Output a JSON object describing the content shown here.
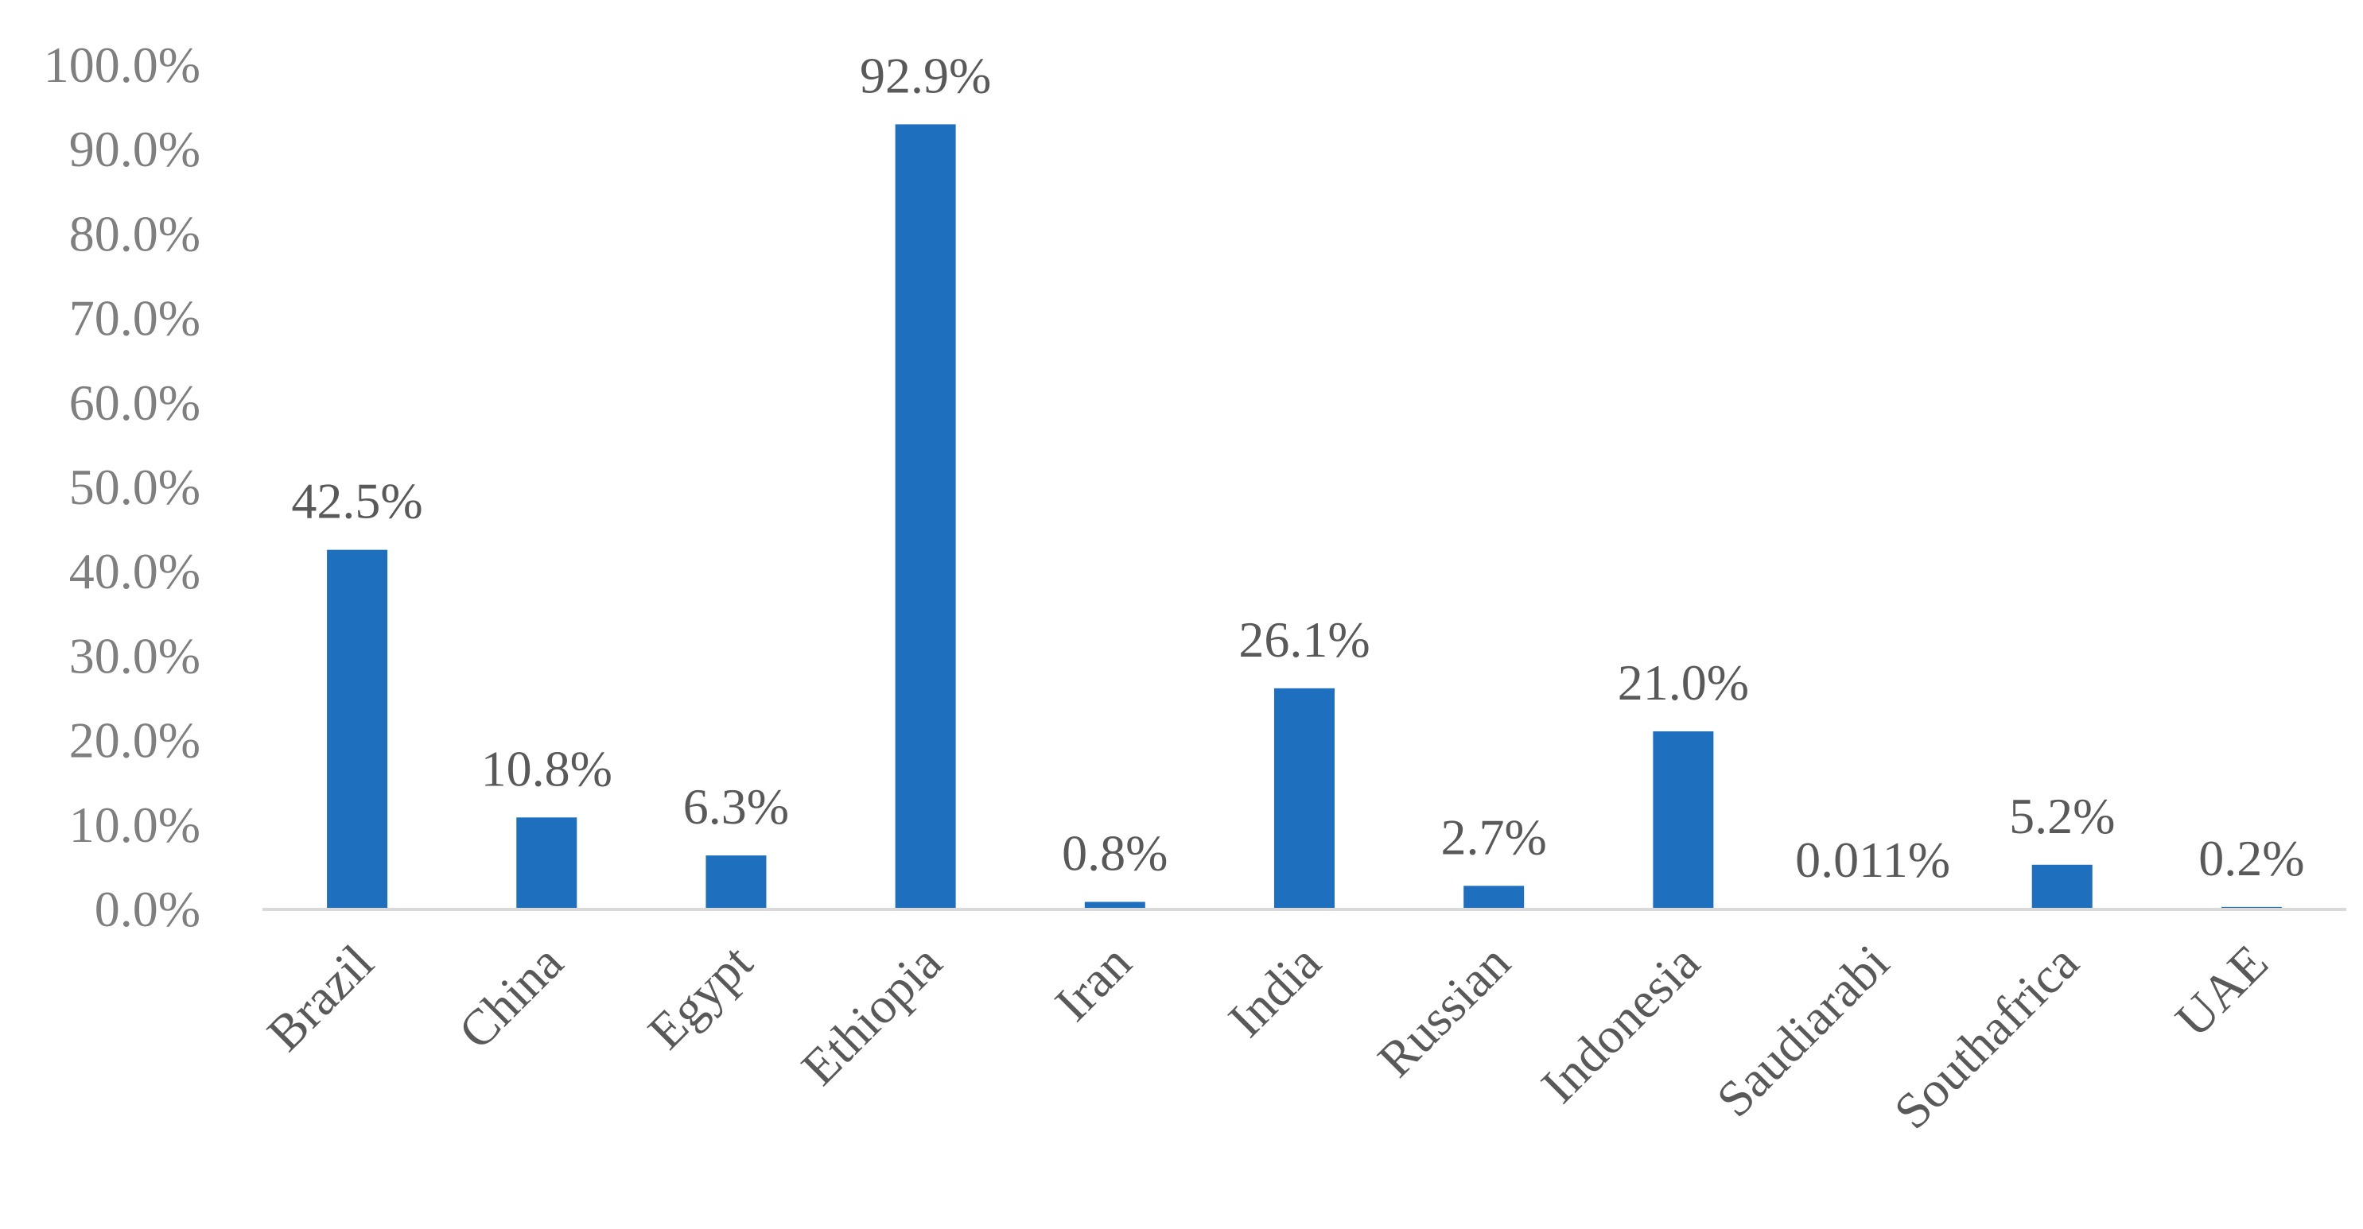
{
  "chart_data": {
    "type": "bar",
    "categories": [
      "Brazil",
      "China",
      "Egypt",
      "Ethiopia",
      "Iran",
      "India",
      "Russian",
      "Indonesia",
      "Saudiarabi",
      "Southafrica",
      "UAE"
    ],
    "values": [
      42.5,
      10.8,
      6.3,
      92.9,
      0.8,
      26.1,
      2.7,
      21.0,
      0.011,
      5.2,
      0.2
    ],
    "data_labels": [
      "42.5%",
      "10.8%",
      "6.3%",
      "92.9%",
      "0.8%",
      "26.1%",
      "2.7%",
      "21.0%",
      "0.011%",
      "5.2%",
      "0.2%"
    ],
    "y_ticks": [
      0,
      10,
      20,
      30,
      40,
      50,
      60,
      70,
      80,
      90,
      100
    ],
    "y_tick_labels": [
      "0.0%",
      "10.0%",
      "20.0%",
      "30.0%",
      "40.0%",
      "50.0%",
      "60.0%",
      "70.0%",
      "80.0%",
      "90.0%",
      "100.0%"
    ],
    "ylim": [
      0,
      100
    ],
    "title": "",
    "xlabel": "",
    "ylabel": "",
    "grid": false,
    "legend": "none",
    "colors": {
      "bar": "#1f6fbf",
      "axis": "#d9d9d9"
    }
  }
}
